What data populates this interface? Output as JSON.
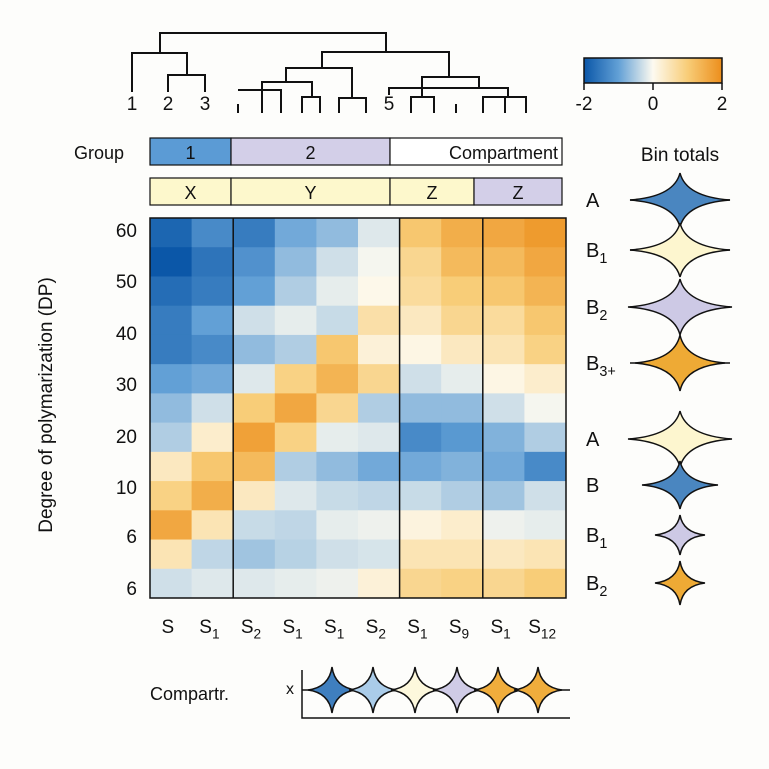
{
  "chart_data": {
    "type": "heatmap",
    "ylabel": "Degree of polymarization (DP)",
    "y_tick_labels": [
      "60",
      "50",
      "40",
      "30",
      "20",
      "10",
      "6",
      "6"
    ],
    "columns": [
      {
        "label": "S",
        "sub": ""
      },
      {
        "label": "S",
        "sub": "1"
      },
      {
        "label": "S",
        "sub": "2"
      },
      {
        "label": "S",
        "sub": "1"
      },
      {
        "label": "S",
        "sub": "1"
      },
      {
        "label": "S",
        "sub": "2"
      },
      {
        "label": "S",
        "sub": "1"
      },
      {
        "label": "S",
        "sub": "9"
      },
      {
        "label": "S",
        "sub": "1"
      },
      {
        "label": "S",
        "sub": "12"
      }
    ],
    "values": [
      [
        -1.8,
        -1.3,
        -1.5,
        -0.9,
        -0.7,
        -0.2,
        1.1,
        1.5,
        1.6,
        1.8
      ],
      [
        -2.0,
        -1.6,
        -1.2,
        -0.7,
        -0.3,
        -0.05,
        0.8,
        1.3,
        1.3,
        1.6
      ],
      [
        -1.7,
        -1.5,
        -1.0,
        -0.5,
        -0.15,
        0.05,
        0.7,
        1.0,
        1.1,
        1.4
      ],
      [
        -1.5,
        -1.0,
        -0.3,
        -0.15,
        -0.35,
        0.6,
        0.4,
        0.8,
        0.7,
        1.1
      ],
      [
        -1.5,
        -1.3,
        -0.7,
        -0.5,
        1.1,
        0.2,
        0.1,
        0.4,
        0.5,
        0.9
      ],
      [
        -1.0,
        -0.9,
        -0.2,
        0.9,
        1.4,
        0.8,
        -0.3,
        -0.15,
        0.1,
        0.3
      ],
      [
        -0.7,
        -0.3,
        1.0,
        1.6,
        0.8,
        -0.5,
        -0.7,
        -0.7,
        -0.3,
        -0.05
      ],
      [
        -0.5,
        0.3,
        1.7,
        0.9,
        -0.15,
        -0.2,
        -1.3,
        -1.1,
        -0.8,
        -0.5
      ],
      [
        0.4,
        1.1,
        1.3,
        -0.5,
        -0.7,
        -0.9,
        -0.9,
        -0.8,
        -0.9,
        -1.3
      ],
      [
        0.9,
        1.5,
        0.4,
        -0.2,
        -0.35,
        -0.4,
        -0.35,
        -0.5,
        -0.6,
        -0.3
      ],
      [
        1.6,
        0.5,
        -0.35,
        -0.4,
        -0.15,
        -0.1,
        0.15,
        0.3,
        -0.1,
        -0.15
      ],
      [
        0.5,
        -0.4,
        -0.6,
        -0.45,
        -0.3,
        -0.25,
        0.5,
        0.5,
        0.4,
        0.5
      ],
      [
        -0.3,
        -0.2,
        -0.2,
        -0.15,
        -0.1,
        0.2,
        0.8,
        0.9,
        0.8,
        1.0
      ]
    ],
    "colorbar": {
      "min": -2,
      "max": 2,
      "tick_labels": [
        "-2",
        "0",
        "2"
      ],
      "colors": [
        "#0b57a8",
        "#62a0d6",
        "#fdfaf0",
        "#f8cd78",
        "#ec8e1c"
      ]
    },
    "dendrogram_labels": [
      "1",
      "2",
      "3",
      "5"
    ],
    "grid": false
  },
  "group_bar": {
    "label": "Group",
    "segments": [
      {
        "text": "1",
        "color": "#5b9bd5"
      },
      {
        "text": "2",
        "color": "#d3cfe8"
      },
      {
        "text": "Compartment",
        "color": "#ffffff"
      }
    ]
  },
  "compartment_bar": {
    "segments": [
      {
        "text": "X",
        "color": "#fdf8cc"
      },
      {
        "text": "Y",
        "color": "#fdf8cc"
      },
      {
        "text": "Z",
        "color": "#fdf8cc"
      },
      {
        "text": "Z",
        "color": "#d3cfe8"
      }
    ]
  },
  "bin_totals": {
    "title": "Bin totals",
    "items": [
      {
        "label": "A",
        "sub": "",
        "color": "#4a86c0"
      },
      {
        "label": "B",
        "sub": "1",
        "color": "#fdf6cf"
      },
      {
        "label": "B",
        "sub": "2",
        "color": "#cdc9e5"
      },
      {
        "label": "B",
        "sub": "3+",
        "color": "#eeaa35"
      },
      {
        "label": "A",
        "sub": "",
        "color": "#fdf6cf"
      },
      {
        "label": "B",
        "sub": "",
        "color": "#4a86c0"
      },
      {
        "label": "B",
        "sub": "1",
        "color": "#cdc9e5"
      },
      {
        "label": "B",
        "sub": "2",
        "color": "#eeaa35"
      }
    ]
  },
  "compartment_track": {
    "label": "Compartr.",
    "axis_label": "x",
    "colors": [
      "#3f7fbf",
      "#aacce9",
      "#fdf8dc",
      "#cfcbe6",
      "#f0ad3c",
      "#f0ad3c"
    ]
  }
}
